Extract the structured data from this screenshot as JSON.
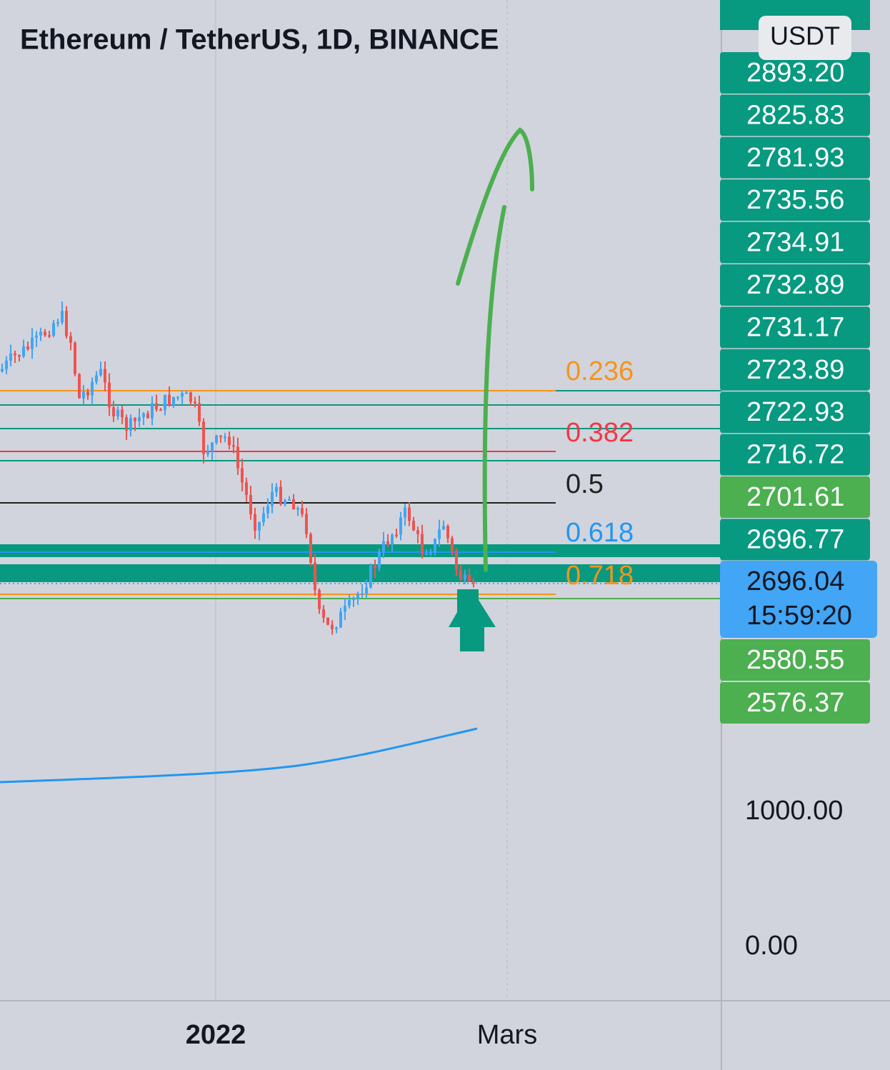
{
  "header": {
    "title": "Ethereum / TetherUS, 1D, BINANCE"
  },
  "price_scale": {
    "currency": "USDT",
    "badges": [
      {
        "label": "2893.20",
        "color": "#089981"
      },
      {
        "label": "2825.83",
        "color": "#089981"
      },
      {
        "label": "2781.93",
        "color": "#089981"
      },
      {
        "label": "2735.56",
        "color": "#089981"
      },
      {
        "label": "2734.91",
        "color": "#089981"
      },
      {
        "label": "2732.89",
        "color": "#089981"
      },
      {
        "label": "2731.17",
        "color": "#089981"
      },
      {
        "label": "2723.89",
        "color": "#089981"
      },
      {
        "label": "2722.93",
        "color": "#089981"
      },
      {
        "label": "2716.72",
        "color": "#089981"
      },
      {
        "label": "2701.61",
        "color": "#4caf50"
      },
      {
        "label": "2696.77",
        "color": "#089981"
      }
    ],
    "current": {
      "price": "2696.04",
      "countdown": "15:59:20"
    },
    "lower_badges": [
      {
        "label": "2580.55",
        "color": "#4caf50"
      },
      {
        "label": "2576.37",
        "color": "#4caf50"
      }
    ],
    "axis_labels": [
      "1000.00",
      "0.00"
    ]
  },
  "fib_levels": [
    {
      "label": "0.236",
      "color": "#f7931a"
    },
    {
      "label": "0.382",
      "color": "#f23645"
    },
    {
      "label": "0.5",
      "color": "#222222"
    },
    {
      "label": "0.618",
      "color": "#2196f3"
    },
    {
      "label": "0.718",
      "color": "#f7931a"
    }
  ],
  "time_axis": {
    "labels": [
      "2022",
      "Mars"
    ]
  }
}
